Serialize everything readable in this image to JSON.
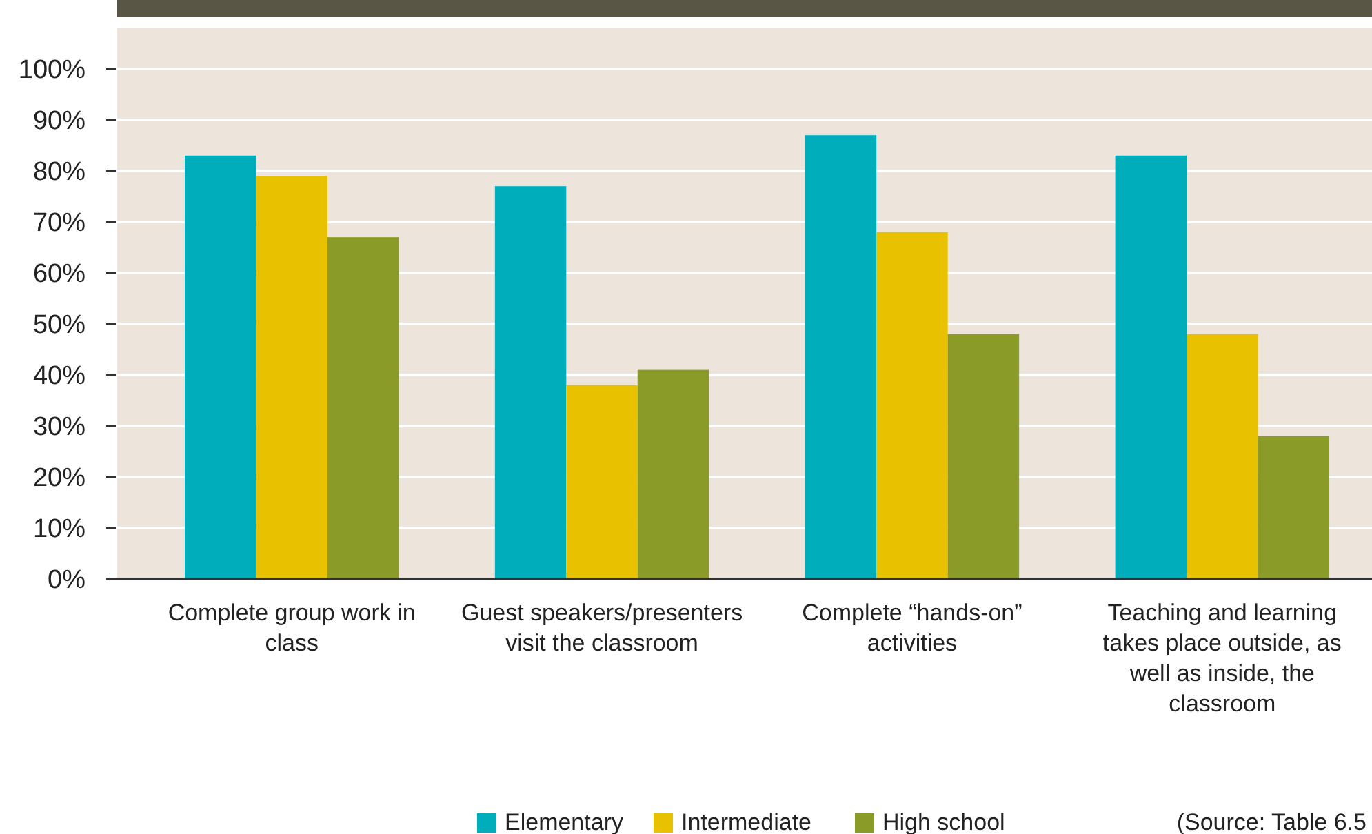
{
  "chart_data": {
    "type": "bar",
    "categories": [
      "Complete group work in class",
      "Guest speakers/presenters visit the classroom",
      "Complete “hands-on” activities",
      "Teaching and learning takes place outside, as well as inside, the classroom"
    ],
    "series": [
      {
        "name": "Elementary",
        "color": "#00adbb",
        "values": [
          83,
          77,
          87,
          83
        ]
      },
      {
        "name": "Intermediate",
        "color": "#e8c100",
        "values": [
          79,
          38,
          68,
          48
        ]
      },
      {
        "name": "High school",
        "color": "#8b9b27",
        "values": [
          67,
          41,
          48,
          28
        ]
      }
    ],
    "ylim": [
      0,
      100
    ],
    "yticks": [
      {
        "value": 0,
        "label": "0%"
      },
      {
        "value": 10,
        "label": "10%"
      },
      {
        "value": 20,
        "label": "20%"
      },
      {
        "value": 30,
        "label": "30%"
      },
      {
        "value": 40,
        "label": "40%"
      },
      {
        "value": 50,
        "label": "50%"
      },
      {
        "value": 60,
        "label": "60%"
      },
      {
        "value": 70,
        "label": "70%"
      },
      {
        "value": 80,
        "label": "80%"
      },
      {
        "value": 90,
        "label": "90%"
      },
      {
        "value": 100,
        "label": "100%"
      }
    ],
    "grid": "y",
    "legend": "bottom",
    "annotations": [
      "(Source: Table 6.5"
    ]
  }
}
